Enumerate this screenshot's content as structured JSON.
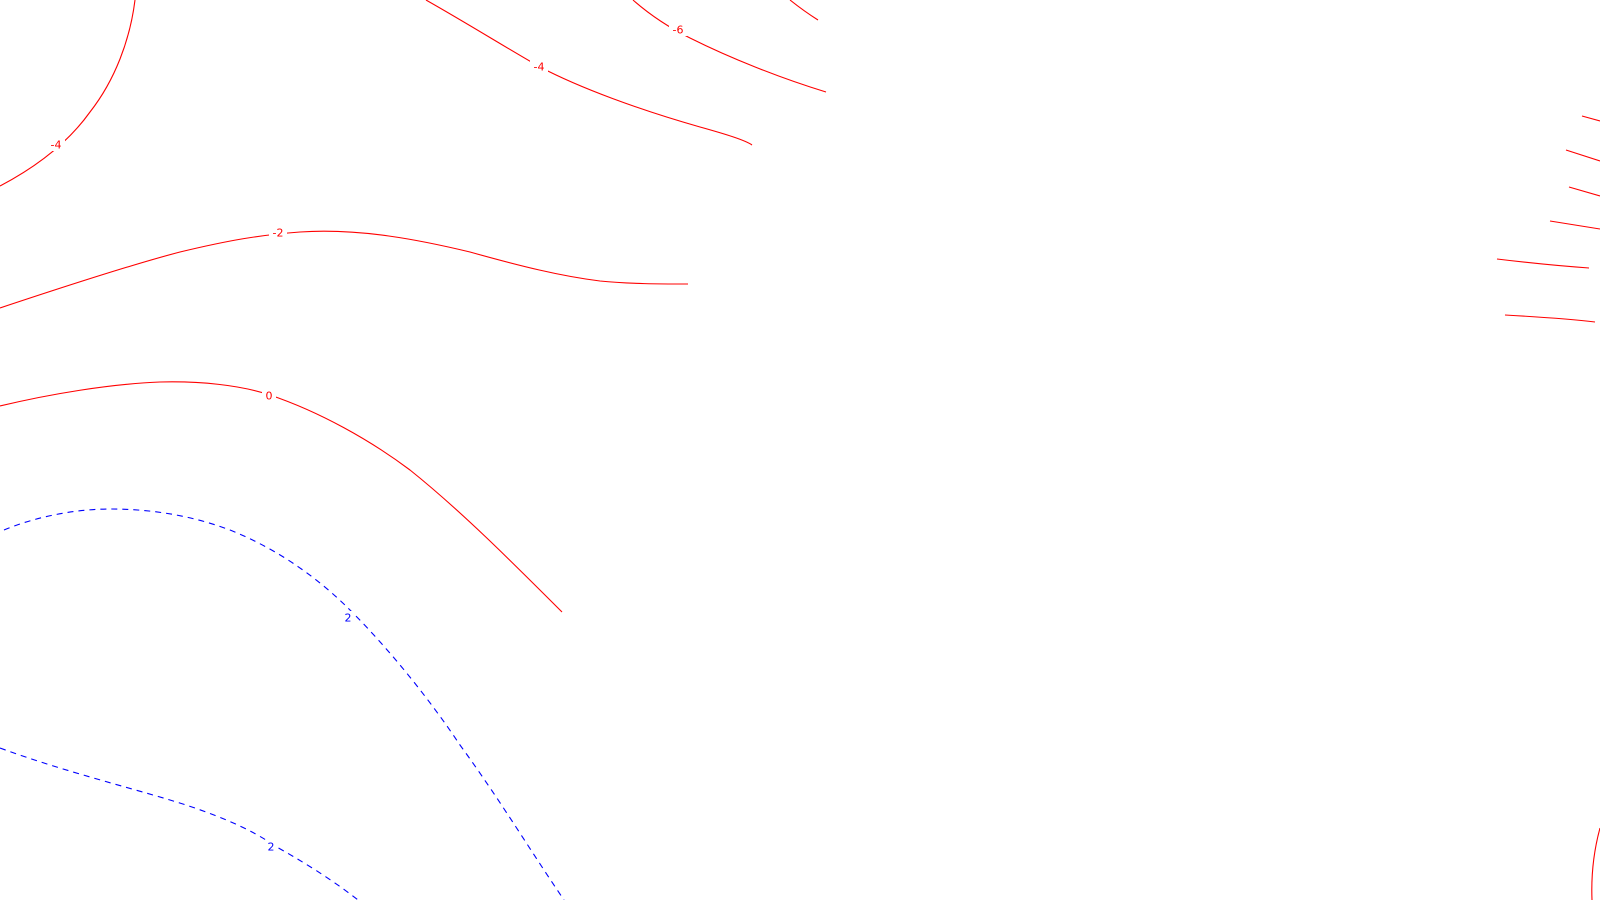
{
  "colors": {
    "background": "#ffffff",
    "negative_contour": "#ff0000",
    "positive_contour": "#0000ff"
  },
  "contours": [
    {
      "id": "contour-neg6",
      "level": -6,
      "label": "-6",
      "style": "solid",
      "color": "#ff0000"
    },
    {
      "id": "contour-neg4-top",
      "level": -4,
      "label": "-4",
      "style": "solid",
      "color": "#ff0000"
    },
    {
      "id": "contour-neg4-left",
      "level": -4,
      "label": "-4",
      "style": "solid",
      "color": "#ff0000"
    },
    {
      "id": "contour-neg2",
      "level": -2,
      "label": "-2",
      "style": "solid",
      "color": "#ff0000"
    },
    {
      "id": "contour-0",
      "level": 0,
      "label": "0",
      "style": "solid",
      "color": "#ff0000"
    },
    {
      "id": "contour-pos2-upper",
      "level": 2,
      "label": "2",
      "style": "dashed",
      "color": "#0000ff"
    },
    {
      "id": "contour-pos2-lower",
      "level": 2,
      "label": "2",
      "style": "dashed",
      "color": "#0000ff"
    }
  ]
}
